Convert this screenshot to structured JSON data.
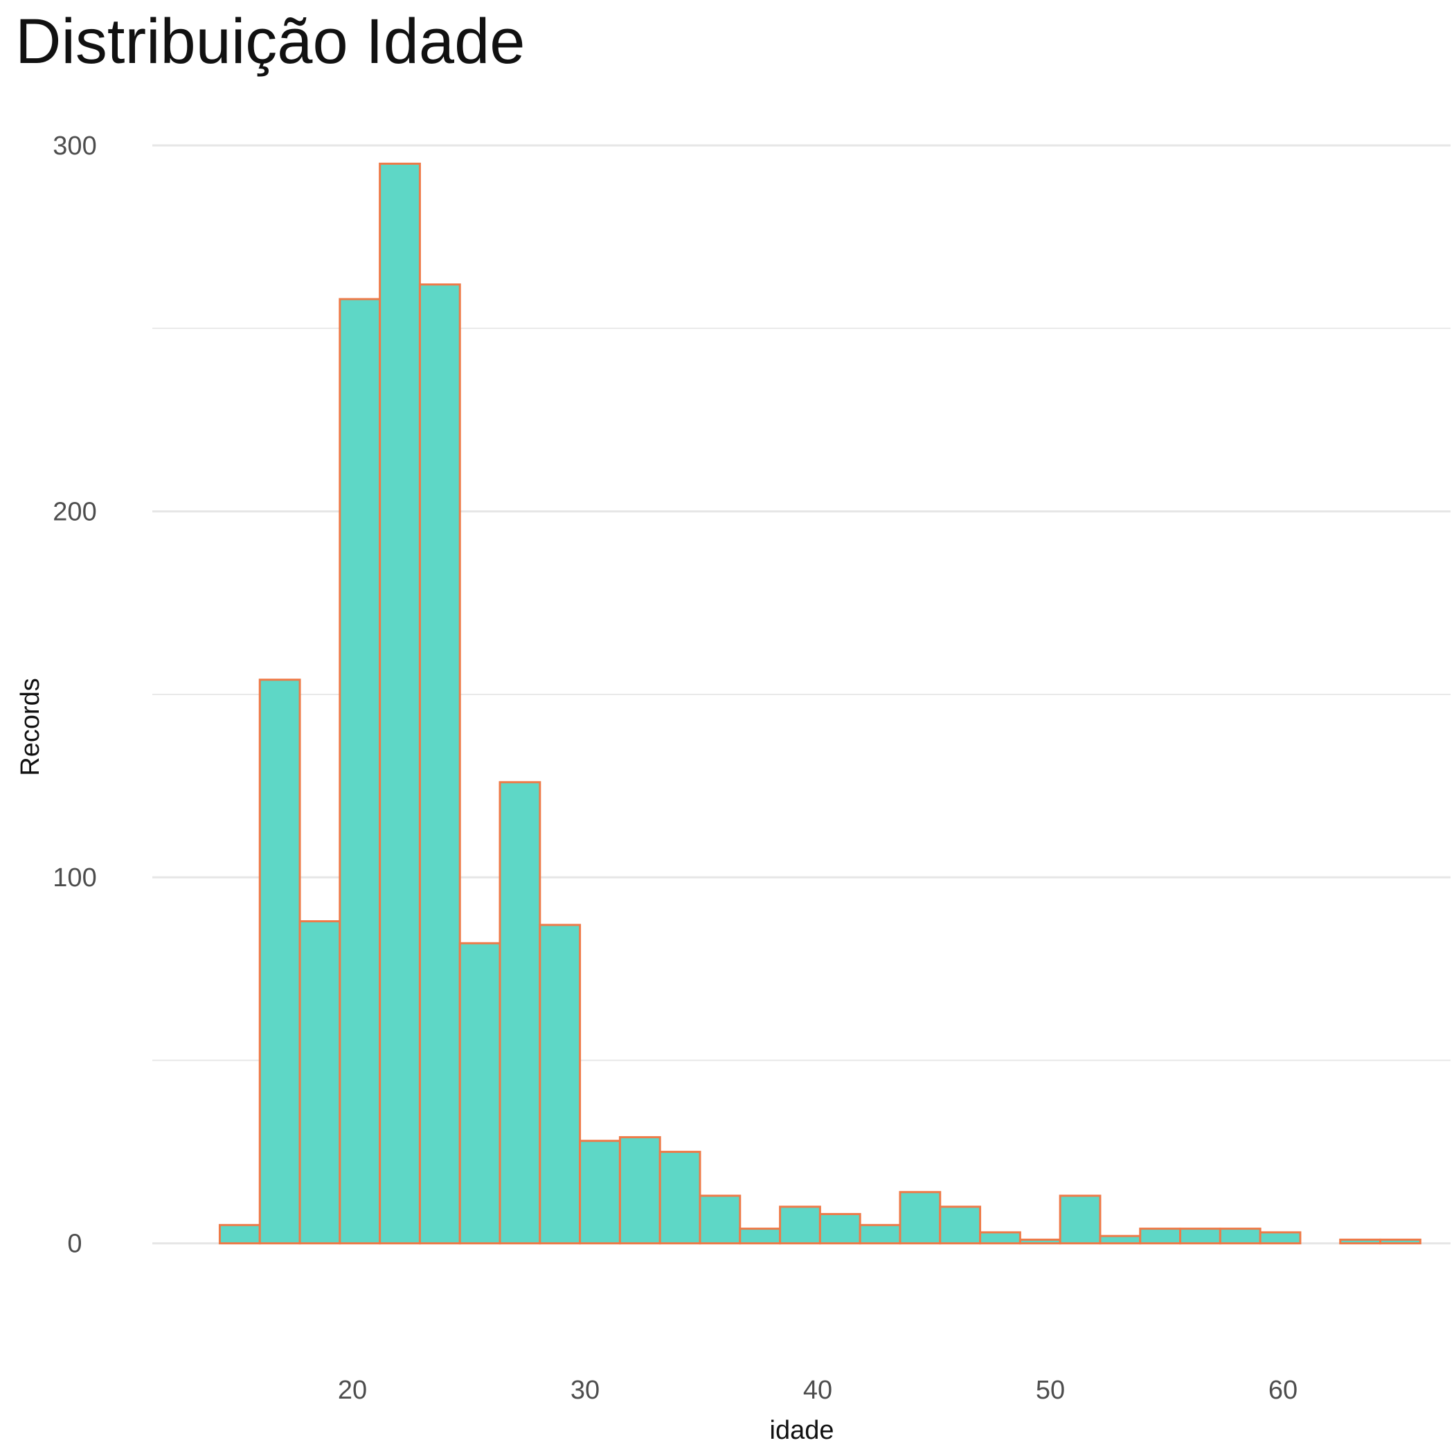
{
  "chart_data": {
    "type": "bar",
    "title": "Distribuição Idade",
    "xlabel": "idade",
    "ylabel": "Records",
    "x_ticks": [
      20,
      30,
      40,
      50,
      60
    ],
    "y_ticks": [
      0,
      100,
      200,
      300
    ],
    "xlim": [
      11.4,
      67.2
    ],
    "ylim": [
      -15,
      300
    ],
    "bin_width": 1.72,
    "bin_start": 14.3,
    "values": [
      5,
      154,
      88,
      258,
      295,
      262,
      82,
      126,
      87,
      28,
      29,
      25,
      13,
      4,
      10,
      8,
      5,
      14,
      10,
      3,
      1,
      13,
      2,
      4,
      4,
      4,
      3,
      0,
      1,
      1
    ],
    "grid": true,
    "legend": "none",
    "colors": {
      "fill": "#5ed7c6",
      "stroke": "#ee7a48",
      "grid": "#e6e6e6"
    }
  }
}
